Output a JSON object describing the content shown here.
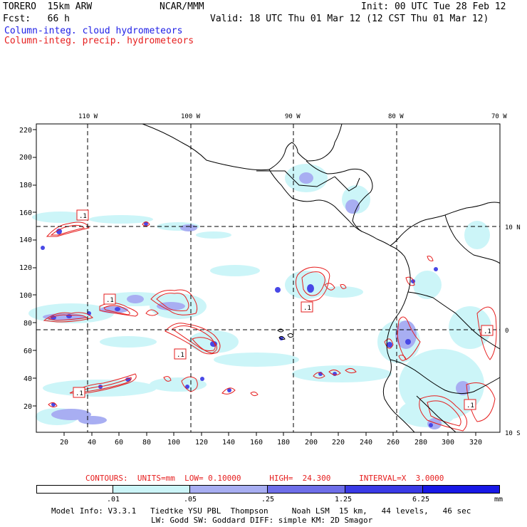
{
  "header": {
    "model": "TORERO  15km ARW",
    "org": "NCAR/MMM",
    "init": "Init: 00 UTC Tue 28 Feb 12",
    "fcst": "Fcst:   66 h",
    "valid": "Valid: 18 UTC Thu 01 Mar 12 (12 CST Thu 01 Mar 12)",
    "legend_cloud": "Column-integ. cloud hydrometeors",
    "legend_precip": "Column-integ. precip. hydrometeors"
  },
  "map": {
    "lon_labels": [
      "110 W",
      "100 W",
      "90 W",
      "80 W",
      "70 W"
    ],
    "lat_labels": [
      "10 N",
      "0",
      "10 S"
    ],
    "y_ticks": [
      "220",
      "200",
      "180",
      "160",
      "140",
      "120",
      "100",
      "80",
      "60",
      "40",
      "20"
    ],
    "x_ticks": [
      "20",
      "40",
      "60",
      "80",
      "100",
      "120",
      "140",
      "160",
      "180",
      "200",
      "220",
      "240",
      "260",
      "280",
      "300",
      "320"
    ],
    "box_labels": [
      ".1",
      ".1",
      ".1",
      ".1",
      ".1",
      ".1",
      ".1"
    ]
  },
  "contours": {
    "text": "CONTOURS:  UNITS=mm  LOW= 0.10000      HIGH=  24.300      INTERVAL=X  3.0000"
  },
  "colorbar": {
    "colors": [
      "#ffffff",
      "#ccf5f8",
      "#a8aef2",
      "#6e6ee9",
      "#3a3ae6",
      "#1818e6"
    ],
    "labels": [
      ".01",
      ".05",
      ".25",
      "1.25",
      "6.25"
    ],
    "unit": "mm"
  },
  "model_info": {
    "line1": "Model Info: V3.3.1   Tiedtke YSU PBL  Thompson     Noah LSM  15 km,   44 levels,   46 sec",
    "line2": "LW: Godd SW: Goddard DIFF: simple KM: 2D Smagor"
  }
}
